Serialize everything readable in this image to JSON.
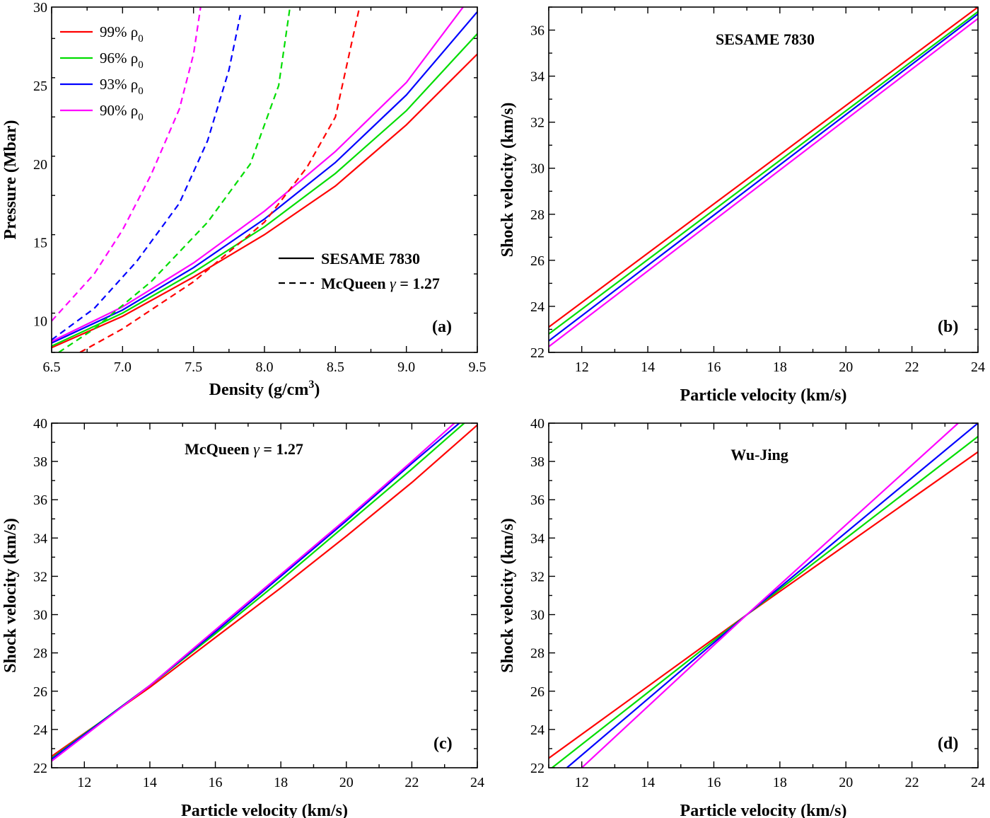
{
  "figure": {
    "colors": {
      "red": "#ff0000",
      "green": "#00dd00",
      "blue": "#0000ff",
      "magenta": "#ff00ff"
    }
  },
  "chart_data": [
    {
      "id": "a",
      "type": "line",
      "panel_label": "(a)",
      "title": "",
      "xlabel_main": "Density (g/cm",
      "xlabel_sup": "3",
      "xlabel_close": ")",
      "ylabel": "Pressure (Mbar)",
      "xlim": [
        6.5,
        9.5
      ],
      "ylim": [
        8,
        30
      ],
      "xticks": [
        6.5,
        7.0,
        7.5,
        8.0,
        8.5,
        9.0,
        9.5
      ],
      "xtick_labels": [
        "6.5",
        "7.0",
        "7.5",
        "8.0",
        "8.5",
        "9.0",
        "9.5"
      ],
      "yticks": [
        10,
        15,
        20,
        25,
        30
      ],
      "ytick_labels": [
        "10",
        "15",
        "20",
        "25",
        "30"
      ],
      "legend": {
        "position": "top-left",
        "entries": [
          {
            "text": "99% ρ",
            "sub": "0",
            "color": "#ff0000"
          },
          {
            "text": "96% ρ",
            "sub": "0",
            "color": "#00dd00"
          },
          {
            "text": "93% ρ",
            "sub": "0",
            "color": "#0000ff"
          },
          {
            "text": "90% ρ",
            "sub": "0",
            "color": "#ff00ff"
          }
        ]
      },
      "style_legend": {
        "position": "center-right",
        "entries": [
          {
            "label_pre": "SESAME 7830",
            "label_gamma": "",
            "label_post": "",
            "dash": "solid"
          },
          {
            "label_pre": "McQueen ",
            "label_gamma": "γ",
            "label_post": " = 1.27",
            "dash": "dashed"
          }
        ]
      },
      "series": [
        {
          "color": "#ff0000",
          "dash": "solid",
          "points": [
            [
              6.5,
              8.3
            ],
            [
              7.0,
              10.3
            ],
            [
              7.5,
              12.8
            ],
            [
              8.0,
              15.5
            ],
            [
              8.5,
              18.6
            ],
            [
              9.0,
              22.5
            ],
            [
              9.5,
              27.0
            ]
          ]
        },
        {
          "color": "#00dd00",
          "dash": "solid",
          "points": [
            [
              6.5,
              8.4
            ],
            [
              7.0,
              10.5
            ],
            [
              7.5,
              13.1
            ],
            [
              8.0,
              16.0
            ],
            [
              8.5,
              19.4
            ],
            [
              9.0,
              23.4
            ],
            [
              9.5,
              28.3
            ]
          ]
        },
        {
          "color": "#0000ff",
          "dash": "solid",
          "points": [
            [
              6.5,
              8.6
            ],
            [
              7.0,
              10.7
            ],
            [
              7.5,
              13.4
            ],
            [
              8.0,
              16.5
            ],
            [
              8.5,
              20.1
            ],
            [
              9.0,
              24.4
            ],
            [
              9.5,
              29.7
            ]
          ]
        },
        {
          "color": "#ff00ff",
          "dash": "solid",
          "points": [
            [
              6.5,
              8.7
            ],
            [
              7.0,
              10.9
            ],
            [
              7.5,
              13.7
            ],
            [
              8.0,
              17.0
            ],
            [
              8.5,
              20.8
            ],
            [
              9.0,
              25.2
            ],
            [
              9.4,
              30.0
            ]
          ]
        },
        {
          "color": "#ff0000",
          "dash": "dashed",
          "points": [
            [
              6.7,
              8.0
            ],
            [
              7.0,
              9.5
            ],
            [
              7.5,
              12.5
            ],
            [
              8.0,
              16.3
            ],
            [
              8.3,
              19.8
            ],
            [
              8.5,
              23.0
            ],
            [
              8.67,
              30.0
            ]
          ]
        },
        {
          "color": "#00dd00",
          "dash": "dashed",
          "points": [
            [
              6.55,
              8.0
            ],
            [
              6.8,
              9.5
            ],
            [
              7.2,
              12.5
            ],
            [
              7.6,
              16.3
            ],
            [
              7.9,
              20.0
            ],
            [
              8.1,
              25.0
            ],
            [
              8.18,
              30.0
            ]
          ]
        },
        {
          "color": "#0000ff",
          "dash": "dashed",
          "points": [
            [
              6.5,
              8.8
            ],
            [
              6.8,
              10.8
            ],
            [
              7.1,
              13.8
            ],
            [
              7.4,
              17.5
            ],
            [
              7.6,
              21.5
            ],
            [
              7.75,
              26.0
            ],
            [
              7.83,
              29.5
            ]
          ]
        },
        {
          "color": "#ff00ff",
          "dash": "dashed",
          "points": [
            [
              6.5,
              10.0
            ],
            [
              6.8,
              13.0
            ],
            [
              7.0,
              15.8
            ],
            [
              7.2,
              19.3
            ],
            [
              7.4,
              23.5
            ],
            [
              7.5,
              27.0
            ],
            [
              7.55,
              30.0
            ]
          ]
        }
      ]
    },
    {
      "id": "b",
      "type": "line",
      "panel_label": "(b)",
      "title": "SESAME 7830",
      "title_gamma": "",
      "title_post": "",
      "xlabel": "Particle velocity (km/s)",
      "ylabel": "Shock velocity (km/s)",
      "xlim": [
        11,
        24
      ],
      "ylim": [
        22,
        37
      ],
      "xticks": [
        12,
        14,
        16,
        18,
        20,
        22,
        24
      ],
      "xtick_labels": [
        "12",
        "14",
        "16",
        "18",
        "20",
        "22",
        "24"
      ],
      "yticks": [
        22,
        24,
        26,
        28,
        30,
        32,
        34,
        36
      ],
      "ytick_labels": [
        "22",
        "24",
        "26",
        "28",
        "30",
        "32",
        "34",
        "36"
      ],
      "series": [
        {
          "color": "#ff0000",
          "points": [
            [
              11,
              23.1
            ],
            [
              24,
              37.0
            ]
          ]
        },
        {
          "color": "#00dd00",
          "points": [
            [
              11,
              22.8
            ],
            [
              24,
              36.8
            ]
          ]
        },
        {
          "color": "#0000ff",
          "points": [
            [
              11,
              22.5
            ],
            [
              24,
              36.7
            ]
          ]
        },
        {
          "color": "#ff00ff",
          "points": [
            [
              11,
              22.25
            ],
            [
              24,
              36.5
            ]
          ]
        }
      ]
    },
    {
      "id": "c",
      "type": "line",
      "panel_label": "(c)",
      "title": "McQueen ",
      "title_gamma": "γ",
      "title_post": " = 1.27",
      "xlabel": "Particle velocity (km/s)",
      "ylabel": "Shock velocity (km/s)",
      "xlim": [
        11,
        24
      ],
      "ylim": [
        22,
        40
      ],
      "xticks": [
        12,
        14,
        16,
        18,
        20,
        22,
        24
      ],
      "xtick_labels": [
        "12",
        "14",
        "16",
        "18",
        "20",
        "22",
        "24"
      ],
      "yticks": [
        22,
        24,
        26,
        28,
        30,
        32,
        34,
        36,
        38,
        40
      ],
      "ytick_labels": [
        "22",
        "24",
        "26",
        "28",
        "30",
        "32",
        "34",
        "36",
        "38",
        "40"
      ],
      "series": [
        {
          "color": "#ff0000",
          "points": [
            [
              11,
              22.6
            ],
            [
              14,
              26.2
            ],
            [
              16,
              28.8
            ],
            [
              18,
              31.4
            ],
            [
              20,
              34.1
            ],
            [
              22,
              36.9
            ],
            [
              24,
              39.9
            ]
          ]
        },
        {
          "color": "#00dd00",
          "points": [
            [
              11,
              22.5
            ],
            [
              14,
              26.3
            ],
            [
              16,
              29.0
            ],
            [
              18,
              31.8
            ],
            [
              20,
              34.7
            ],
            [
              22,
              37.6
            ],
            [
              23.6,
              40.0
            ]
          ]
        },
        {
          "color": "#0000ff",
          "points": [
            [
              11,
              22.45
            ],
            [
              14,
              26.3
            ],
            [
              16,
              29.1
            ],
            [
              18,
              32.0
            ],
            [
              20,
              34.9
            ],
            [
              22,
              37.9
            ],
            [
              23.45,
              40.0
            ]
          ]
        },
        {
          "color": "#ff00ff",
          "points": [
            [
              11,
              22.35
            ],
            [
              14,
              26.3
            ],
            [
              16,
              29.2
            ],
            [
              18,
              32.1
            ],
            [
              20,
              35.0
            ],
            [
              22,
              38.0
            ],
            [
              23.3,
              40.0
            ]
          ]
        }
      ]
    },
    {
      "id": "d",
      "type": "line",
      "panel_label": "(d)",
      "title": "Wu-Jing",
      "title_gamma": "",
      "title_post": "",
      "xlabel": "Particle velocity (km/s)",
      "ylabel": "Shock velocity (km/s)",
      "xlim": [
        11,
        24
      ],
      "ylim": [
        22,
        40
      ],
      "xticks": [
        12,
        14,
        16,
        18,
        20,
        22,
        24
      ],
      "xtick_labels": [
        "12",
        "14",
        "16",
        "18",
        "20",
        "22",
        "24"
      ],
      "yticks": [
        22,
        24,
        26,
        28,
        30,
        32,
        34,
        36,
        38,
        40
      ],
      "ytick_labels": [
        "22",
        "24",
        "26",
        "28",
        "30",
        "32",
        "34",
        "36",
        "38",
        "40"
      ],
      "series": [
        {
          "color": "#ff0000",
          "points": [
            [
              11,
              22.5
            ],
            [
              17,
              30.0
            ],
            [
              24,
              38.5
            ]
          ]
        },
        {
          "color": "#00dd00",
          "points": [
            [
              11.1,
              22.0
            ],
            [
              17,
              30.0
            ],
            [
              24,
              39.3
            ]
          ]
        },
        {
          "color": "#0000ff",
          "points": [
            [
              11.55,
              22.0
            ],
            [
              17,
              30.0
            ],
            [
              24,
              40.0
            ]
          ]
        },
        {
          "color": "#ff00ff",
          "points": [
            [
              12.0,
              22.0
            ],
            [
              17,
              30.0
            ],
            [
              23.4,
              40.0
            ]
          ]
        }
      ]
    }
  ]
}
